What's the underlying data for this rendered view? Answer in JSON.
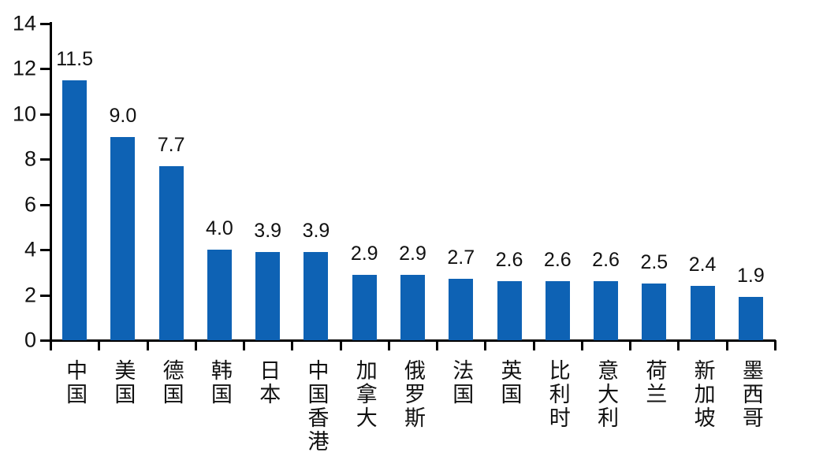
{
  "chart_data": {
    "type": "bar",
    "categories": [
      "中国",
      "美国",
      "德国",
      "韩国",
      "日本",
      "中国香港",
      "加拿大",
      "俄罗斯",
      "法国",
      "英国",
      "比利时",
      "意大利",
      "荷兰",
      "新加坡",
      "墨西哥"
    ],
    "values": [
      11.5,
      9.0,
      7.7,
      4.0,
      3.9,
      3.9,
      2.9,
      2.9,
      2.7,
      2.6,
      2.6,
      2.6,
      2.5,
      2.4,
      1.9
    ],
    "data_labels": [
      "11.5",
      "9.0",
      "7.7",
      "4.0",
      "3.9",
      "3.9",
      "2.9",
      "2.9",
      "2.7",
      "2.6",
      "2.6",
      "2.6",
      "2.5",
      "2.4",
      "1.9"
    ],
    "title": "",
    "xlabel": "",
    "ylabel": "",
    "ylim": [
      0,
      14
    ],
    "yticks": [
      0,
      2,
      4,
      6,
      8,
      10,
      12,
      14
    ],
    "grid": false,
    "legend_position": "none",
    "bar_color": "#0e62b4",
    "axis_color": "#000000",
    "text_color": "#111111"
  }
}
